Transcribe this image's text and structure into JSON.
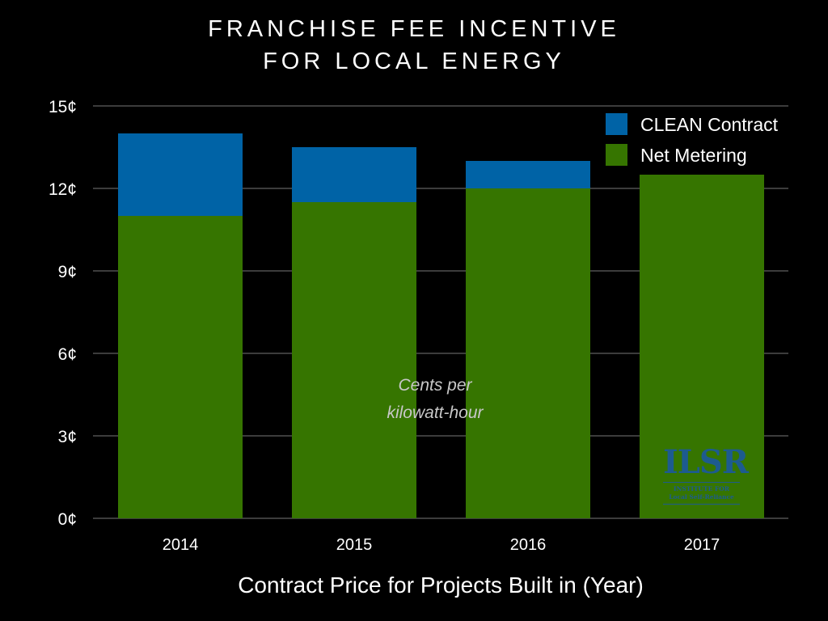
{
  "chart_data": {
    "type": "bar",
    "stacked": true,
    "title_lines": [
      "FRANCHISE FEE INCENTIVE",
      "FOR LOCAL ENERGY"
    ],
    "xlabel": "Contract Price for Projects Built in (Year)",
    "ylabel": "",
    "categories": [
      "2014",
      "2015",
      "2016",
      "2017"
    ],
    "series": [
      {
        "name": "Net Metering",
        "values": [
          11,
          11.5,
          12,
          12.5
        ],
        "color": "#367500"
      },
      {
        "name": "CLEAN Contract",
        "values": [
          3,
          2,
          1,
          0
        ],
        "color": "#0063a6"
      }
    ],
    "legend_order": [
      "CLEAN Contract",
      "Net Metering"
    ],
    "legend_position": "top-right",
    "ylim": [
      0,
      15
    ],
    "yticks": [
      0,
      3,
      6,
      9,
      12,
      15
    ],
    "ytick_labels": [
      "0¢",
      "3¢",
      "6¢",
      "9¢",
      "12¢",
      "15¢"
    ],
    "grid": true,
    "annotation_lines": [
      "Cents per",
      "kilowatt-hour"
    ]
  },
  "logo": {
    "main": "ILSR",
    "line1": "INSTITUTE FOR",
    "line2": "Local Self-Reliance"
  }
}
